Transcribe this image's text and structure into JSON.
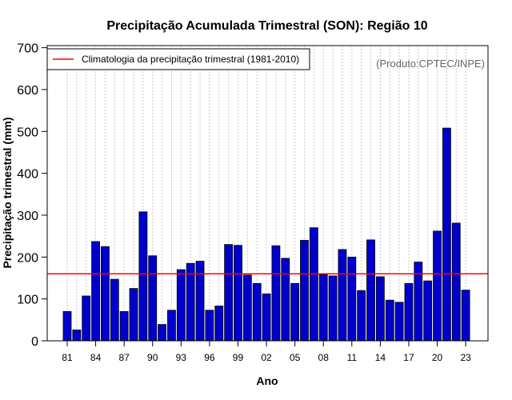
{
  "chart_data": {
    "type": "bar",
    "title": "Precipitação Acumulada Trimestral (SON): Região 10",
    "xlabel": "Ano",
    "ylabel": "Precipitação trimestral (mm)",
    "ylim": [
      0,
      700
    ],
    "yticks": [
      0,
      100,
      200,
      300,
      400,
      500,
      600,
      700
    ],
    "years": [
      1981,
      1982,
      1983,
      1984,
      1985,
      1986,
      1987,
      1988,
      1989,
      1990,
      1991,
      1992,
      1993,
      1994,
      1995,
      1996,
      1997,
      1998,
      1999,
      2000,
      2001,
      2002,
      2003,
      2004,
      2005,
      2006,
      2007,
      2008,
      2009,
      2010,
      2011,
      2012,
      2013,
      2014,
      2015,
      2016,
      2017,
      2018,
      2019,
      2020,
      2021,
      2022,
      2023
    ],
    "values": [
      70,
      26,
      107,
      237,
      225,
      147,
      70,
      125,
      308,
      203,
      39,
      73,
      170,
      185,
      190,
      73,
      83,
      230,
      228,
      157,
      137,
      112,
      227,
      197,
      137,
      240,
      270,
      158,
      155,
      218,
      200,
      120,
      241,
      153,
      97,
      92,
      137,
      188,
      143,
      262,
      508,
      281,
      121
    ],
    "xtick_labels": [
      "81",
      "84",
      "87",
      "90",
      "93",
      "96",
      "99",
      "02",
      "05",
      "08",
      "11",
      "14",
      "17",
      "20",
      "23"
    ],
    "xtick_years": [
      1981,
      1984,
      1987,
      1990,
      1993,
      1996,
      1999,
      2002,
      2005,
      2008,
      2011,
      2014,
      2017,
      2020,
      2023
    ],
    "climatology": {
      "label": "Climatologia da precipitação trimestral (1981-2010)",
      "value": 160,
      "color": "#ff0000"
    },
    "credit": "(Produto:CPTEC/INPE)",
    "bar_color": "#0000cc",
    "grid": "vertical dotted",
    "legend_position": "top-left"
  }
}
